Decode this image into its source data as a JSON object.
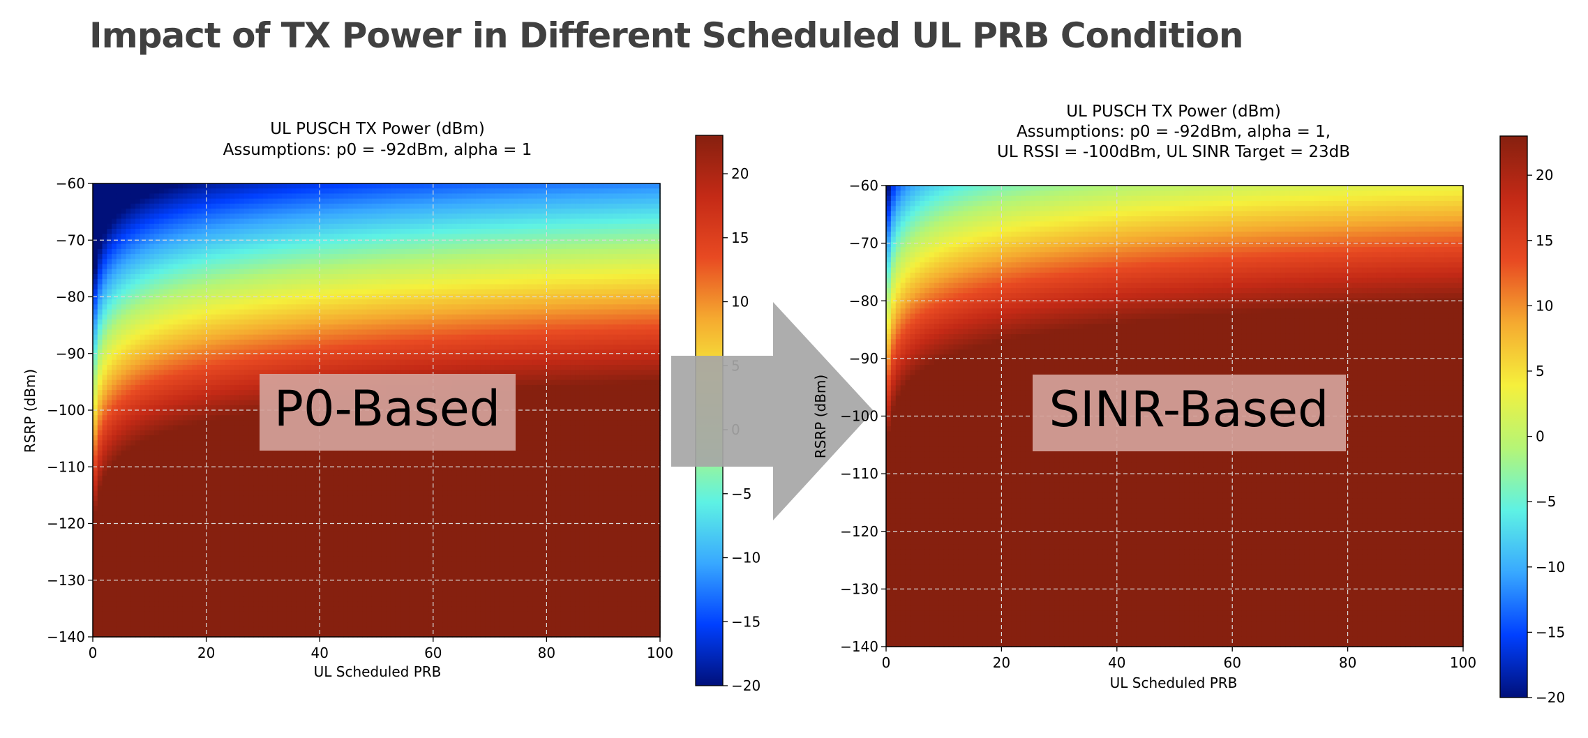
{
  "page": {
    "title": "Impact of TX Power in Different Scheduled UL PRB Condition"
  },
  "colors": {
    "saturated": "#86200f",
    "arrow": "#a6a6a6",
    "label_box": "#d4a29a",
    "colorscale": [
      "#00107a",
      "#0040ff",
      "#38a8ff",
      "#5ef2e4",
      "#b5f576",
      "#f5f03c",
      "#f5aa30",
      "#e84a22",
      "#c42a16",
      "#86200f"
    ]
  },
  "chart_data": [
    {
      "type": "heatmap",
      "title_lines": [
        "UL PUSCH TX Power (dBm)",
        "Assumptions: p0 = -92dBm, alpha = 1"
      ],
      "xlabel": "UL Scheduled PRB",
      "ylabel": "RSRP (dBm)",
      "xlim": [
        0,
        100
      ],
      "ylim": [
        -140,
        -60
      ],
      "xticks": [
        0,
        20,
        40,
        60,
        80,
        100
      ],
      "yticks": [
        -60,
        -70,
        -80,
        -90,
        -100,
        -110,
        -120,
        -130,
        -140
      ],
      "grid": true,
      "colorbar": {
        "range": [
          -20,
          23
        ],
        "ticks": [
          20,
          15,
          10,
          5,
          0,
          -5,
          -10,
          -15,
          -20
        ]
      },
      "overlay_label": "P0-Based",
      "model": {
        "p0": -92,
        "alpha": 1,
        "pmax": 23
      }
    },
    {
      "type": "heatmap",
      "title_lines": [
        "UL PUSCH TX Power (dBm)",
        "Assumptions: p0 = -92dBm, alpha = 1,",
        "UL RSSI = -100dBm, UL SINR Target = 23dB"
      ],
      "xlabel": "UL Scheduled PRB",
      "ylabel": "RSRP (dBm)",
      "xlim": [
        0,
        100
      ],
      "ylim": [
        -140,
        -60
      ],
      "xticks": [
        0,
        20,
        40,
        60,
        80,
        100
      ],
      "yticks": [
        -60,
        -70,
        -80,
        -90,
        -100,
        -110,
        -120,
        -130,
        -140
      ],
      "grid": true,
      "colorbar": {
        "range": [
          -20,
          23
        ],
        "ticks": [
          20,
          15,
          10,
          5,
          0,
          -5,
          -10,
          -15,
          -20
        ]
      },
      "overlay_label": "SINR-Based",
      "model": {
        "rssi": -100,
        "sinr_target": 23,
        "pmax": 23
      }
    }
  ]
}
